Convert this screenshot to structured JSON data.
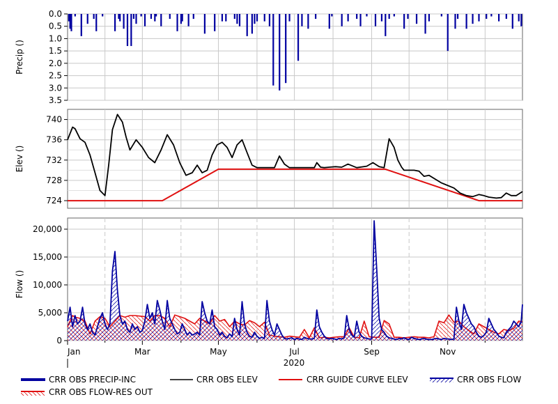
{
  "chart_data": [
    {
      "type": "bar",
      "ylabel": "Precip ()",
      "ylim": [
        0,
        3.5
      ],
      "inverted_y": true,
      "y_ticks": [
        "0.0",
        "0.5",
        "1.0",
        "1.5",
        "2.0",
        "2.5",
        "3.0",
        "3.5"
      ],
      "series": [
        {
          "name": "CRR OBS PRECIP-INC",
          "color": "#0000a0",
          "x": [
            1,
            2,
            3,
            6,
            11,
            16,
            21,
            23,
            28,
            38,
            41,
            42,
            45,
            48,
            51,
            53,
            55,
            59,
            62,
            67,
            70,
            71,
            75,
            82,
            88,
            91,
            92,
            97,
            101,
            110,
            118,
            124,
            127,
            134,
            136,
            138,
            144,
            148,
            150,
            152,
            158,
            162,
            165,
            170,
            175,
            178,
            185,
            188,
            193,
            199,
            210,
            212,
            220,
            225,
            232,
            235,
            240,
            247,
            252,
            255,
            258,
            262,
            270,
            273,
            280,
            287,
            290,
            300,
            305,
            311,
            313,
            320,
            325,
            330,
            336,
            340,
            346,
            352,
            357,
            362,
            364
          ],
          "values": [
            0.3,
            0.6,
            0.7,
            0.1,
            0.9,
            0.4,
            0.2,
            0.7,
            0.1,
            0.7,
            0.2,
            0.3,
            0.6,
            1.3,
            1.3,
            0.2,
            0.4,
            0.1,
            0.5,
            0.2,
            0.3,
            0.1,
            0.5,
            0.2,
            0.7,
            0.4,
            0.3,
            0.5,
            0.2,
            0.8,
            0.7,
            0.3,
            0.3,
            0.2,
            0.4,
            0.5,
            0.9,
            0.8,
            0.4,
            0.3,
            0.3,
            0.5,
            2.9,
            3.1,
            2.8,
            0.3,
            1.9,
            0.5,
            0.6,
            0.2,
            0.6,
            0.1,
            0.5,
            0.3,
            0.2,
            0.5,
            0.1,
            0.5,
            0.3,
            0.9,
            0.2,
            0.1,
            0.6,
            0.2,
            0.4,
            0.8,
            0.3,
            0.1,
            1.5,
            0.6,
            0.2,
            0.6,
            0.4,
            0.3,
            0.2,
            0.1,
            0.3,
            0.2,
            0.6,
            0.3,
            0.5
          ]
        }
      ]
    },
    {
      "type": "line",
      "ylabel": "Elev ()",
      "ylim": [
        722.5,
        742
      ],
      "y_ticks": [
        724,
        728,
        732,
        736,
        740
      ],
      "series": [
        {
          "name": "CRR OBS ELEV",
          "color": "#000000",
          "x": [
            0,
            4,
            6,
            10,
            14,
            18,
            22,
            26,
            30,
            33,
            36,
            40,
            44,
            47,
            50,
            55,
            60,
            65,
            70,
            75,
            80,
            85,
            90,
            95,
            100,
            104,
            108,
            112,
            116,
            120,
            124,
            128,
            132,
            136,
            140,
            144,
            148,
            152,
            158,
            162,
            166,
            170,
            174,
            178,
            182,
            186,
            192,
            198,
            200,
            203,
            206,
            210,
            215,
            220,
            225,
            232,
            240,
            245,
            250,
            254,
            258,
            262,
            265,
            268,
            270,
            274,
            278,
            282,
            286,
            290,
            300,
            310,
            315,
            320,
            325,
            330,
            334,
            338,
            344,
            348,
            352,
            356,
            360,
            365
          ],
          "values": [
            736,
            738.5,
            738.2,
            736.2,
            735.5,
            733,
            729.5,
            726,
            725,
            731,
            738,
            741,
            739.5,
            736.5,
            734,
            736,
            734.5,
            732.5,
            731.5,
            734,
            737,
            735,
            731.5,
            729,
            729.5,
            731,
            729.5,
            730,
            733,
            735,
            735.5,
            734.5,
            732.5,
            735,
            736,
            733.5,
            731,
            730.5,
            730.5,
            730.5,
            730.5,
            732.8,
            731.2,
            730.5,
            730.5,
            730.5,
            730.5,
            730.5,
            731.5,
            730.6,
            730.5,
            730.6,
            730.7,
            730.6,
            731.2,
            730.5,
            730.8,
            731.5,
            730.7,
            730.5,
            736.2,
            734.5,
            732,
            730.6,
            730,
            730,
            730,
            729.8,
            728.8,
            729,
            727.5,
            726.5,
            725.5,
            725,
            724.8,
            725.2,
            725,
            724.7,
            724.5,
            724.6,
            725.5,
            725,
            725,
            725.8
          ]
        },
        {
          "name": "CRR GUIDE CURVE ELEV",
          "color": "#e01010",
          "x": [
            0,
            76,
            121,
            255,
            330,
            365
          ],
          "values": [
            724,
            724,
            730.2,
            730.2,
            724,
            724
          ]
        }
      ]
    },
    {
      "type": "area",
      "ylabel": "Flow ()",
      "xlabel": "2020",
      "ylim": [
        0,
        22000
      ],
      "y_ticks": [
        0,
        5000,
        10000,
        15000,
        20000
      ],
      "y_tick_labels": [
        "0",
        "5,000",
        "10,000",
        "15,000",
        "20,000"
      ],
      "categories": [
        "Jan",
        "Mar",
        "May",
        "Jul",
        "Sep",
        "Nov"
      ],
      "category_days": [
        0,
        60,
        121,
        182,
        244,
        305
      ],
      "grid_days": [
        30,
        60,
        91,
        121,
        152,
        182,
        213,
        244,
        274,
        305,
        335
      ],
      "series": [
        {
          "name": "CRR OBS FLOW",
          "color": "#0000a0",
          "x": [
            0,
            2,
            4,
            6,
            8,
            10,
            12,
            14,
            16,
            18,
            20,
            22,
            24,
            26,
            28,
            30,
            32,
            34,
            36,
            38,
            40,
            42,
            44,
            46,
            48,
            50,
            52,
            54,
            56,
            58,
            60,
            62,
            64,
            66,
            68,
            70,
            72,
            74,
            76,
            78,
            80,
            82,
            84,
            86,
            88,
            90,
            92,
            94,
            96,
            98,
            100,
            102,
            104,
            106,
            108,
            110,
            112,
            114,
            116,
            118,
            120,
            122,
            124,
            126,
            128,
            130,
            132,
            134,
            136,
            138,
            140,
            142,
            144,
            146,
            148,
            150,
            152,
            154,
            156,
            158,
            160,
            162,
            164,
            166,
            168,
            170,
            172,
            174,
            176,
            178,
            180,
            182,
            184,
            186,
            188,
            190,
            192,
            194,
            196,
            198,
            200,
            202,
            204,
            206,
            208,
            210,
            212,
            214,
            216,
            218,
            220,
            222,
            224,
            226,
            228,
            230,
            232,
            234,
            236,
            238,
            240,
            242,
            244,
            246,
            248,
            250,
            252,
            254,
            256,
            258,
            260,
            262,
            264,
            266,
            268,
            270,
            272,
            274,
            276,
            278,
            280,
            282,
            284,
            286,
            288,
            290,
            292,
            294,
            296,
            298,
            300,
            302,
            304,
            306,
            308,
            310,
            312,
            314,
            316,
            318,
            320,
            322,
            324,
            326,
            328,
            330,
            332,
            334,
            336,
            338,
            340,
            342,
            344,
            346,
            348,
            350,
            352,
            354,
            356,
            358,
            360,
            362,
            364,
            365
          ],
          "values": [
            3500,
            6000,
            2500,
            4500,
            3000,
            3500,
            6000,
            3000,
            2000,
            3000,
            1500,
            1000,
            2500,
            4000,
            5000,
            3000,
            2000,
            3000,
            12500,
            16000,
            9000,
            4500,
            3000,
            3500,
            2000,
            1500,
            3000,
            2000,
            2500,
            1500,
            1800,
            3500,
            6500,
            4000,
            5000,
            3000,
            7200,
            5500,
            3500,
            2000,
            7200,
            4000,
            3000,
            2000,
            1200,
            1500,
            3000,
            2000,
            1000,
            1500,
            1000,
            1200,
            1500,
            1000,
            7000,
            5000,
            3500,
            3000,
            5500,
            2500,
            2000,
            1000,
            1500,
            800,
            500,
            1200,
            700,
            4000,
            2000,
            1000,
            7000,
            3000,
            1500,
            800,
            600,
            1500,
            800,
            400,
            600,
            400,
            7200,
            3500,
            2000,
            1000,
            3000,
            2000,
            1000,
            400,
            300,
            400,
            500,
            200,
            400,
            300,
            200,
            600,
            400,
            300,
            300,
            400,
            5500,
            2500,
            1500,
            800,
            400,
            300,
            400,
            300,
            200,
            400,
            300,
            500,
            4500,
            2000,
            1000,
            600,
            3500,
            1500,
            800,
            500,
            400,
            300,
            300,
            21500,
            13000,
            4000,
            2000,
            1500,
            800,
            500,
            400,
            300,
            200,
            400,
            300,
            500,
            300,
            200,
            600,
            400,
            300,
            200,
            300,
            400,
            250,
            200,
            200,
            300,
            400,
            300,
            200,
            400,
            300,
            300,
            200,
            300,
            6000,
            3500,
            2000,
            6500,
            5000,
            4000,
            3000,
            2500,
            1500,
            800,
            600,
            900,
            1500,
            4000,
            3000,
            2000,
            1500,
            800,
            600,
            500,
            1500,
            2000,
            2500,
            3500,
            3000,
            2500,
            3500,
            6500
          ]
        },
        {
          "name": "CRR OBS FLOW-RES OUT",
          "color": "#e01010",
          "x": [
            0,
            2,
            4,
            6,
            10,
            14,
            18,
            22,
            26,
            30,
            34,
            38,
            42,
            46,
            50,
            54,
            58,
            62,
            66,
            70,
            74,
            78,
            82,
            86,
            90,
            94,
            98,
            102,
            106,
            110,
            114,
            118,
            122,
            126,
            130,
            134,
            138,
            142,
            146,
            150,
            154,
            158,
            162,
            166,
            170,
            174,
            178,
            182,
            186,
            190,
            194,
            198,
            202,
            206,
            210,
            214,
            218,
            222,
            226,
            230,
            234,
            238,
            242,
            246,
            250,
            254,
            258,
            262,
            266,
            270,
            274,
            278,
            282,
            286,
            290,
            294,
            298,
            302,
            306,
            310,
            314,
            318,
            322,
            326,
            330,
            334,
            338,
            342,
            346,
            350,
            354,
            358,
            362,
            365
          ],
          "values": [
            2500,
            3500,
            4500,
            4200,
            4000,
            3500,
            1200,
            3500,
            4300,
            4000,
            2500,
            3500,
            4500,
            4200,
            4500,
            4500,
            4400,
            4300,
            3500,
            4500,
            4500,
            4000,
            2500,
            4600,
            4300,
            4000,
            3500,
            3000,
            4000,
            3500,
            3000,
            4500,
            3500,
            3800,
            2500,
            3500,
            3000,
            2800,
            3600,
            3200,
            2500,
            3300,
            1000,
            800,
            700,
            600,
            800,
            700,
            600,
            2000,
            500,
            2300,
            500,
            600,
            500,
            600,
            700,
            700,
            2300,
            600,
            500,
            3500,
            700,
            600,
            600,
            3600,
            3000,
            600,
            600,
            500,
            600,
            700,
            600,
            600,
            500,
            700,
            3500,
            3200,
            4600,
            3300,
            3500,
            2500,
            1800,
            1200,
            3000,
            2500,
            2000,
            1500,
            1200,
            2000,
            1800,
            2200,
            3500,
            3400
          ]
        }
      ]
    }
  ],
  "legend": [
    {
      "label": "CRR OBS PRECIP-INC",
      "color": "#0000a0",
      "style": "thick-line"
    },
    {
      "label": "CRR OBS ELEV",
      "color": "#000000",
      "style": "line"
    },
    {
      "label": "CRR GUIDE CURVE ELEV",
      "color": "#e01010",
      "style": "line"
    },
    {
      "label": "CRR OBS FLOW",
      "color": "#0000a0",
      "style": "hatched"
    },
    {
      "label": "CRR OBS FLOW-RES OUT",
      "color": "#e01010",
      "style": "hatched"
    }
  ]
}
